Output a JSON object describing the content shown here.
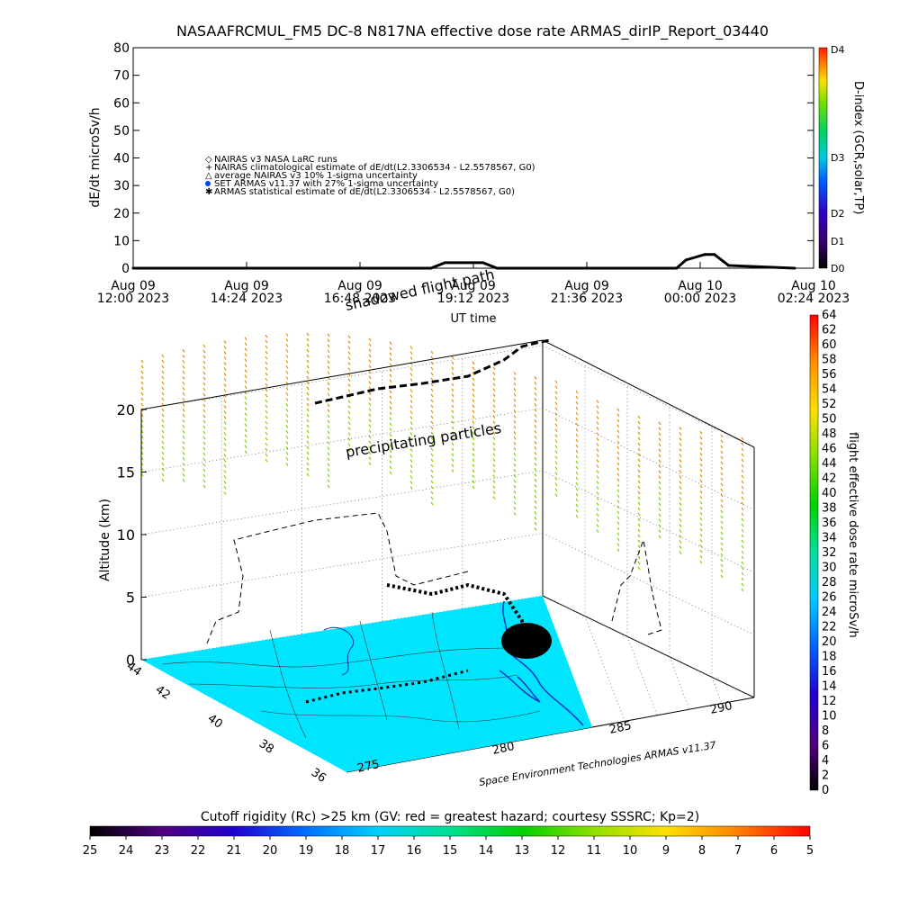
{
  "title": "NASAAFRCMUL_FM5 DC-8    N817NA effective dose rate ARMAS_dirIP_Report_03440",
  "chart_data": [
    {
      "type": "line",
      "name": "dose-rate-timeseries",
      "ylabel": "dE/dt microSv/h",
      "xlabel": "UT time",
      "ylim": [
        0,
        80
      ],
      "yticks": [
        "0",
        "10",
        "20",
        "30",
        "40",
        "50",
        "60",
        "70",
        "80"
      ],
      "xticks": [
        {
          "l1": "Aug 09",
          "l2": "12:00 2023"
        },
        {
          "l1": "Aug 09",
          "l2": "14:24 2023"
        },
        {
          "l1": "Aug 09",
          "l2": "16:48 2023"
        },
        {
          "l1": "Aug 09",
          "l2": "19:12 2023"
        },
        {
          "l1": "Aug 09",
          "l2": "21:36 2023"
        },
        {
          "l1": "Aug 10",
          "l2": "00:00 2023"
        },
        {
          "l1": "Aug 10",
          "l2": "02:24 2023"
        }
      ],
      "legend": [
        "NAIRAS v3 NASA LaRC runs",
        "NAIRAS climatological estimate of dE/dt(L2.3306534 - L2.5578567, G0)",
        "average NAIRAS v3 10% 1-sigma uncertainty",
        "SET ARMAS v11.37 with 27% 1-sigma uncertainty",
        "ARMAS statistical estimate of dE/dt(L2.3306534 - L2.5578567, G0)"
      ],
      "legend_placement": "upper-left",
      "series": [
        {
          "x": [
            0,
            2,
            4,
            6.3,
            6.6,
            7.4,
            7.7,
            9.5,
            11.5,
            11.7,
            12.1,
            12.3,
            12.6,
            14.0
          ],
          "y": [
            0,
            0,
            0,
            0,
            2,
            2,
            0,
            0,
            0,
            3,
            5,
            5,
            1,
            0
          ]
        }
      ],
      "right_axis": {
        "label": "D-index (GCR,solar,TP)",
        "ticks": [
          "D0",
          "D1",
          "D2",
          "D3",
          "D4"
        ]
      }
    },
    {
      "type": "scatter",
      "name": "3d-flight-path",
      "zlabel": "Altitude (km)",
      "zticks": [
        "0",
        "5",
        "10",
        "15",
        "20"
      ],
      "lat_ticks": [
        "44",
        "42",
        "40",
        "38",
        "36"
      ],
      "lon_ticks": [
        "275",
        "280",
        "285",
        "290"
      ],
      "annotations": [
        "precipitating particles",
        "shadowed flight path"
      ],
      "credit": "Space Environment Technologies ARMAS v11.37",
      "colorbar": {
        "label": "flight effective dose rate microSv/h",
        "ticks": [
          "0",
          "2",
          "4",
          "6",
          "8",
          "10",
          "12",
          "14",
          "16",
          "18",
          "20",
          "22",
          "24",
          "26",
          "28",
          "30",
          "32",
          "34",
          "36",
          "38",
          "40",
          "42",
          "44",
          "46",
          "48",
          "50",
          "52",
          "54",
          "56",
          "58",
          "60",
          "62",
          "64"
        ]
      },
      "colors": {
        "map_ocean": "#00e5ff",
        "coast": "#0033cc",
        "particles_low": "#80d000",
        "particles_high": "#e09000"
      }
    },
    {
      "type": "heatmap",
      "name": "cutoff-rigidity-colorbar",
      "label": "Cutoff rigidity (Rc) >25 km (GV: red = greatest hazard; courtesy SSSRC; Kp=2)",
      "ticks": [
        "25",
        "24",
        "23",
        "22",
        "21",
        "20",
        "19",
        "18",
        "17",
        "16",
        "15",
        "14",
        "13",
        "12",
        "11",
        "10",
        "9",
        "8",
        "7",
        "6",
        "5"
      ]
    }
  ]
}
